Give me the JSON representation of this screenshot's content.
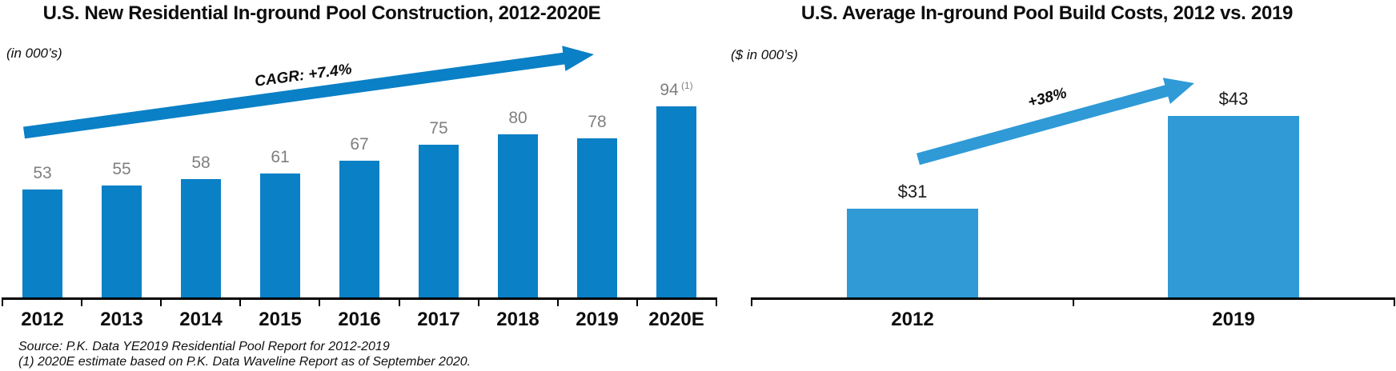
{
  "chart_data": [
    {
      "type": "bar",
      "title": "U.S. New Residential In-ground Pool Construction, 2012-2020E",
      "ylabel": "(in 000’s)",
      "categories": [
        "2012",
        "2013",
        "2014",
        "2015",
        "2016",
        "2017",
        "2018",
        "2019",
        "2020E"
      ],
      "values": [
        53,
        55,
        58,
        61,
        67,
        75,
        80,
        78,
        94
      ],
      "data_labels": [
        "53",
        "55",
        "58",
        "61",
        "67",
        "75",
        "80",
        "78",
        "94"
      ],
      "superscripts": {
        "8": "(1)"
      },
      "annotation": "CAGR: +7.4%",
      "bar_color": "#0a80c6",
      "data_label_color": "#7f7f7f",
      "ylim": [
        0,
        100
      ],
      "grid": false,
      "legend": "none"
    },
    {
      "type": "bar",
      "title": "U.S. Average In-ground Pool Build Costs, 2012 vs. 2019",
      "ylabel": "($ in 000’s)",
      "categories": [
        "2012",
        "2019"
      ],
      "values": [
        31,
        43
      ],
      "data_labels": [
        "$31",
        "$43"
      ],
      "annotation": "+38%",
      "bar_color": "#2f9ad6",
      "data_label_color": "#1a1a1a",
      "ylim": [
        0,
        50
      ],
      "grid": false,
      "legend": "none"
    }
  ],
  "footnotes": [
    "Source: P.K. Data YE2019 Residential Pool Report for 2012-2019",
    "(1) 2020E estimate based on P.K. Data Waveline Report as of September 2020."
  ]
}
